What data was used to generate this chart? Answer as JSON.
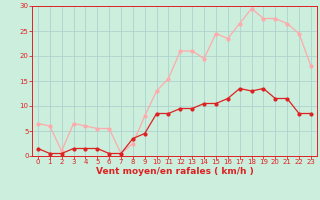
{
  "hours": [
    0,
    1,
    2,
    3,
    4,
    5,
    6,
    7,
    8,
    9,
    10,
    11,
    12,
    13,
    14,
    15,
    16,
    17,
    18,
    19,
    20,
    21,
    22,
    23
  ],
  "wind_avg": [
    1.5,
    0.5,
    0.5,
    1.5,
    1.5,
    1.5,
    0.5,
    0.5,
    3.5,
    4.5,
    8.5,
    8.5,
    9.5,
    9.5,
    10.5,
    10.5,
    11.5,
    13.5,
    13.0,
    13.5,
    11.5,
    11.5,
    8.5,
    8.5
  ],
  "wind_gust": [
    6.5,
    6.0,
    1.0,
    6.5,
    6.0,
    5.5,
    5.5,
    0.5,
    2.5,
    8.0,
    13.0,
    15.5,
    21.0,
    21.0,
    19.5,
    24.5,
    23.5,
    26.5,
    29.5,
    27.5,
    27.5,
    26.5,
    24.5,
    18.0
  ],
  "color_avg": "#dd2222",
  "color_gust": "#ffaaaa",
  "bg_color": "#cceedd",
  "grid_color": "#aacccc",
  "xlabel": "Vent moyen/en rafales ( km/h )",
  "ylim": [
    0,
    30
  ],
  "xlim_min": -0.5,
  "xlim_max": 23.5,
  "yticks": [
    0,
    5,
    10,
    15,
    20,
    25,
    30
  ],
  "xticks": [
    0,
    1,
    2,
    3,
    4,
    5,
    6,
    7,
    8,
    9,
    10,
    11,
    12,
    13,
    14,
    15,
    16,
    17,
    18,
    19,
    20,
    21,
    22,
    23
  ],
  "tick_fontsize": 5.0,
  "xlabel_fontsize": 6.5,
  "marker_size": 2.0,
  "line_width": 0.9
}
